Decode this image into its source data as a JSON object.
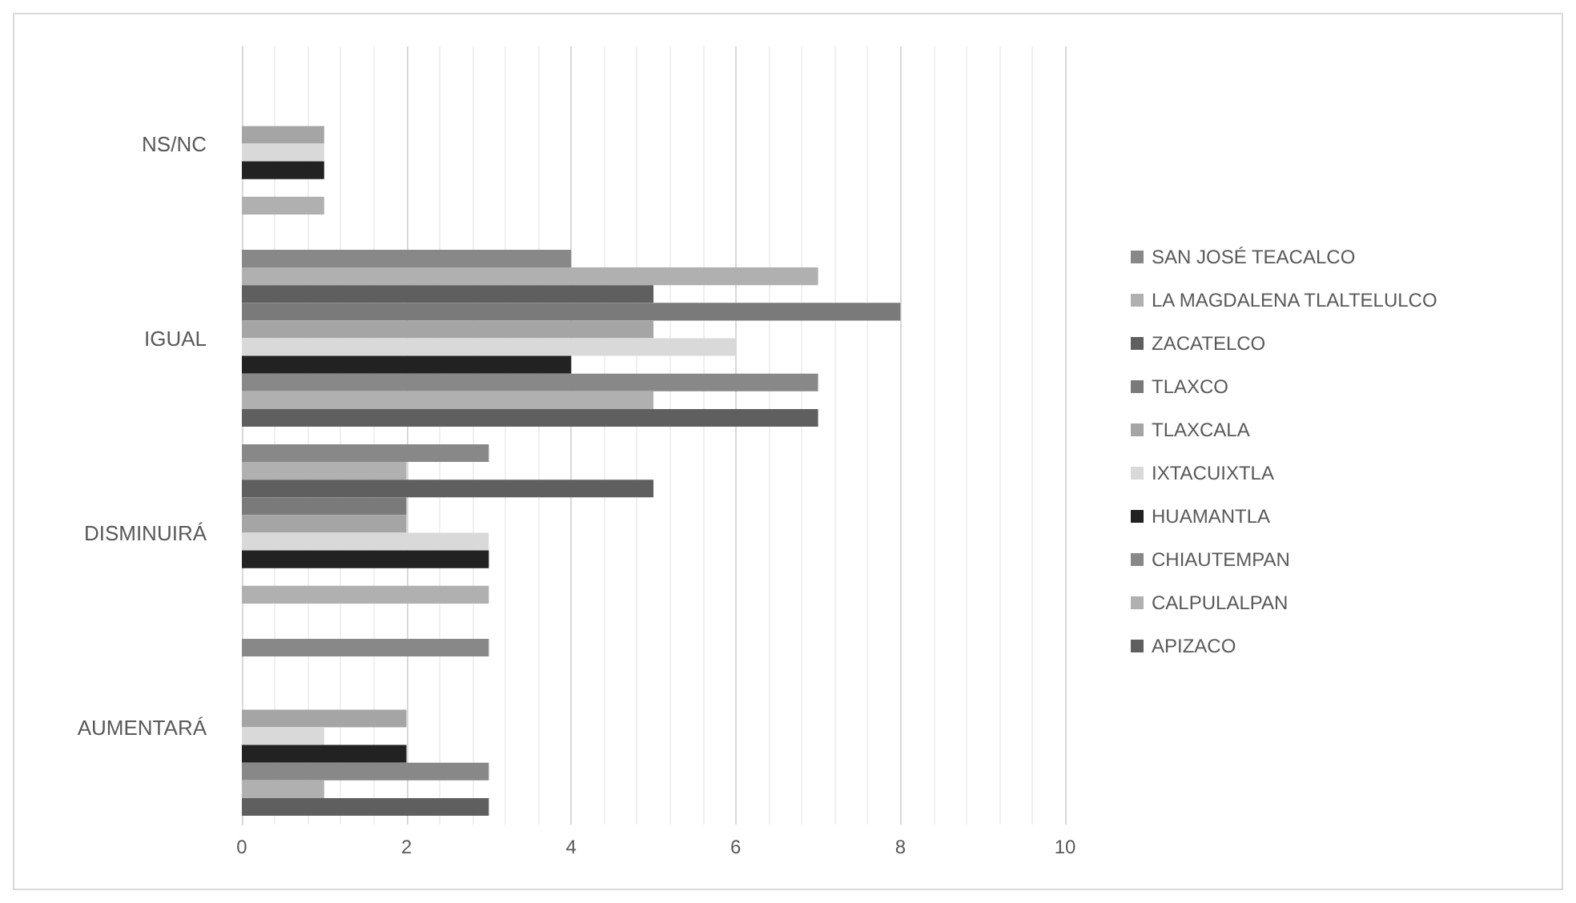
{
  "chart_data": {
    "type": "bar",
    "orientation": "horizontal",
    "categories": [
      "NS/NC",
      "IGUAL",
      "DISMINUIRÁ",
      "AUMENTARÁ"
    ],
    "series": [
      {
        "name": "SAN JOSÉ TEACALCO",
        "color": "#888888",
        "values": [
          null,
          4,
          3,
          3
        ]
      },
      {
        "name": "LA MAGDALENA TLALTELULCO",
        "color": "#b0b0b0",
        "values": [
          null,
          7,
          2,
          null
        ]
      },
      {
        "name": "ZACATELCO",
        "color": "#5f5f5f",
        "values": [
          null,
          5,
          5,
          null
        ]
      },
      {
        "name": "TLAXCO",
        "color": "#7a7a7a",
        "values": [
          null,
          8,
          2,
          null
        ]
      },
      {
        "name": "TLAXCALA",
        "color": "#a5a5a5",
        "values": [
          1,
          5,
          2,
          2
        ]
      },
      {
        "name": "IXTACUIXTLA",
        "color": "#d9d9d9",
        "values": [
          1,
          6,
          3,
          1
        ]
      },
      {
        "name": "HUAMANTLA",
        "color": "#222222",
        "values": [
          1,
          4,
          3,
          2
        ]
      },
      {
        "name": "CHIAUTEMPAN",
        "color": "#888888",
        "values": [
          null,
          7,
          null,
          3
        ]
      },
      {
        "name": "CALPULALPAN",
        "color": "#b0b0b0",
        "values": [
          1,
          5,
          3,
          1
        ]
      },
      {
        "name": "APIZACO",
        "color": "#5f5f5f",
        "values": [
          null,
          7,
          null,
          3
        ]
      }
    ],
    "xlim": [
      0,
      10
    ],
    "xticks": [
      0,
      2,
      4,
      6,
      8,
      10
    ],
    "grid": "x",
    "legend": "right"
  }
}
